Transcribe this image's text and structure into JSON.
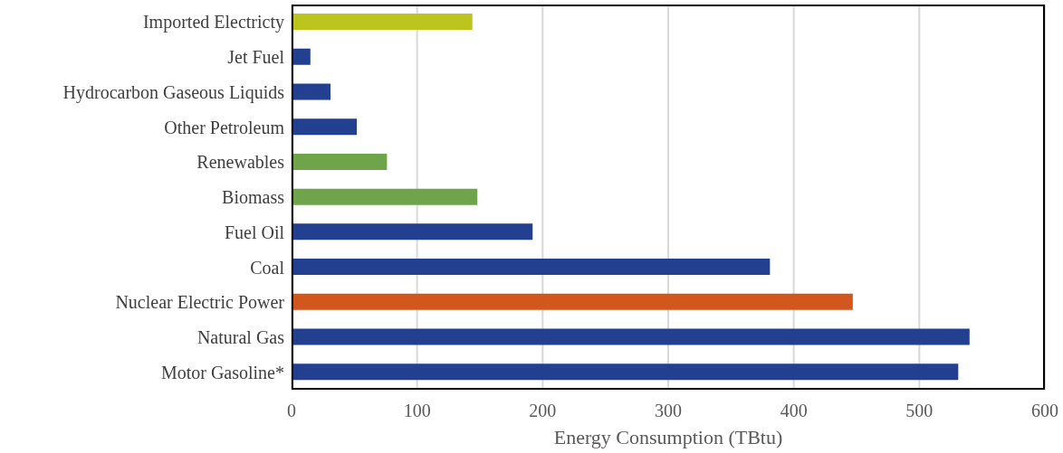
{
  "chart_data": {
    "type": "bar",
    "orientation": "horizontal",
    "xlabel": "Energy Consumption (TBtu)",
    "categories": [
      "Imported Electricty",
      "Jet Fuel",
      "Hydrocarbon Gaseous Liquids",
      "Other Petroleum",
      "Renewables",
      "Biomass",
      "Fuel Oil",
      "Coal",
      "Nuclear Electric Power",
      "Natural Gas",
      "Motor Gasoline*"
    ],
    "values": [
      144,
      15,
      31,
      52,
      76,
      148,
      192,
      381,
      447,
      540,
      531
    ],
    "colors": [
      "#bcc41e",
      "#234090",
      "#234090",
      "#234090",
      "#70a44a",
      "#70a44a",
      "#234090",
      "#234090",
      "#d1571f",
      "#234090",
      "#234090"
    ],
    "xlim": [
      0,
      600
    ],
    "xticks": [
      0,
      100,
      200,
      300,
      400,
      500,
      600
    ],
    "grid": "x",
    "legend": false
  }
}
